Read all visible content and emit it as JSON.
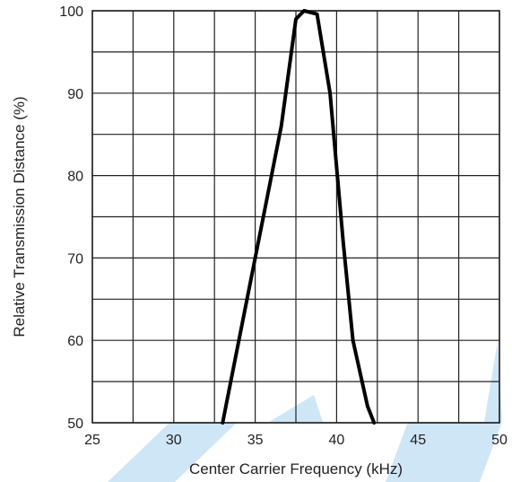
{
  "chart_data": {
    "type": "line",
    "xlabel": "Center Carrier Frequency  (kHz)",
    "ylabel": "Relative Transmission Distance (%)",
    "xlim": [
      25,
      50
    ],
    "ylim": [
      50,
      100
    ],
    "x_ticks": [
      25,
      30,
      35,
      40,
      45,
      50
    ],
    "y_ticks": [
      50,
      60,
      70,
      80,
      90,
      100
    ],
    "grid": true,
    "x_grid_step": 2.5,
    "y_grid_step": 5,
    "series": [
      {
        "x": [
          33.0,
          34.0,
          35.0,
          36.0,
          36.6,
          37.5,
          38.0,
          38.8,
          39.6,
          40.4,
          41.0,
          41.9,
          42.3
        ],
        "values": [
          50,
          60,
          70,
          80,
          86,
          99,
          100,
          99.6,
          90,
          72,
          60,
          52,
          50
        ]
      }
    ],
    "colors": {
      "line": "#000000",
      "grid": "#222222",
      "watermark": "#cfe6f6"
    }
  }
}
